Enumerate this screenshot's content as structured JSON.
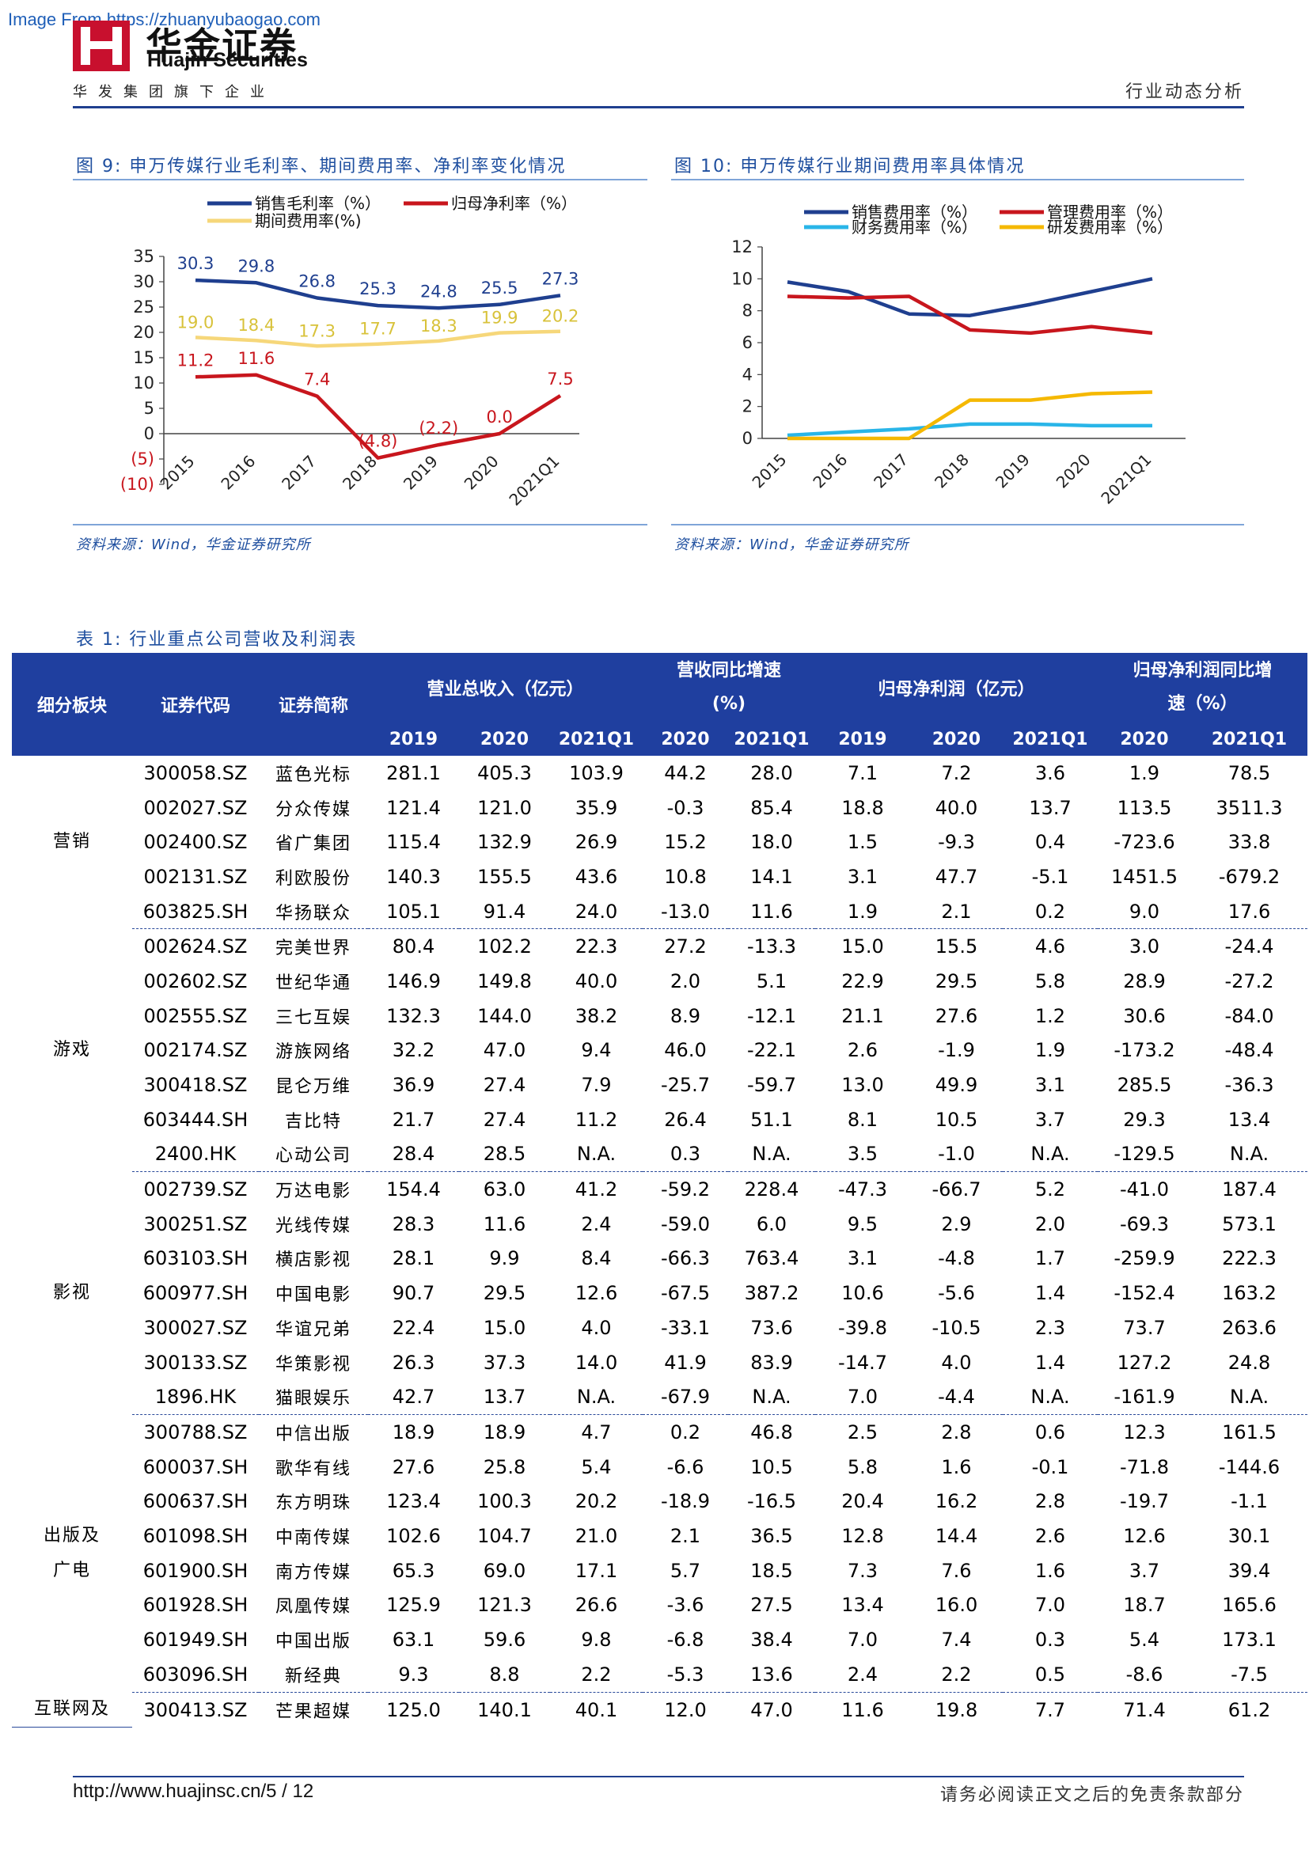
{
  "header": {
    "watermark": "Image From https://zhuanyubaogao.com",
    "logo_cn": "华金证券",
    "logo_en": "Huajin Securities",
    "subtitle": "华发集团旗下企业",
    "section": "行业动态分析",
    "brand_color": "#c8102e",
    "accent_color": "#1f3f9f"
  },
  "fig9": {
    "title": "图 9:  申万传媒行业毛利率、期间费用率、净利率变化情况",
    "source": "资料来源：Wind，华金证券研究所"
  },
  "fig10": {
    "title": "图 10:  申万传媒行业期间费用率具体情况",
    "source": "资料来源：Wind，华金证券研究所"
  },
  "chart_data": [
    {
      "type": "line",
      "categories": [
        "2015",
        "2016",
        "2017",
        "2018",
        "2019",
        "2020",
        "2021Q1"
      ],
      "ylim": [
        -10,
        35
      ],
      "yticks": [
        "35",
        "30",
        "25",
        "20",
        "15",
        "10",
        "5",
        "0",
        "(5)",
        "(10)"
      ],
      "legend": "top",
      "series": [
        {
          "name": "销售毛利率（%）",
          "color": "#1f3f8f",
          "values": [
            30.3,
            29.8,
            26.8,
            25.3,
            24.8,
            25.5,
            27.3
          ],
          "labels": [
            "30.3",
            "29.8",
            "26.8",
            "25.3",
            "24.8",
            "25.5",
            "27.3"
          ]
        },
        {
          "name": "归母净利率（%）",
          "color": "#c8161d",
          "values": [
            11.2,
            11.6,
            7.4,
            -4.8,
            -2.2,
            0.0,
            7.5
          ],
          "labels": [
            "11.2",
            "11.6",
            "7.4",
            "(4.8)",
            "(2.2)",
            "0.0",
            "7.5"
          ]
        },
        {
          "name": "期间费用率(%)",
          "color": "#f6d77a",
          "values": [
            19.0,
            18.4,
            17.3,
            17.7,
            18.3,
            19.9,
            20.2
          ],
          "labels": [
            "19.0",
            "18.4",
            "17.3",
            "17.7",
            "18.3",
            "19.9",
            "20.2"
          ]
        }
      ]
    },
    {
      "type": "line",
      "categories": [
        "2015",
        "2016",
        "2017",
        "2018",
        "2019",
        "2020",
        "2021Q1"
      ],
      "ylim": [
        0,
        12
      ],
      "yticks": [
        "12",
        "10",
        "8",
        "6",
        "4",
        "2",
        "0"
      ],
      "legend": "top",
      "series": [
        {
          "name": "销售费用率（%）",
          "color": "#1f3f8f",
          "values": [
            9.8,
            9.2,
            7.8,
            7.7,
            8.4,
            9.2,
            10.0
          ]
        },
        {
          "name": "管理费用率（%）",
          "color": "#c8161d",
          "values": [
            8.9,
            8.8,
            8.9,
            6.8,
            6.6,
            7.0,
            6.6
          ]
        },
        {
          "name": "财务费用率（%）",
          "color": "#29b5e8",
          "values": [
            0.2,
            0.4,
            0.6,
            0.9,
            0.9,
            0.8,
            0.8
          ]
        },
        {
          "name": "研发费用率（%）",
          "color": "#f5b800",
          "values": [
            0.0,
            0.0,
            0.0,
            2.4,
            2.4,
            2.8,
            2.9
          ]
        }
      ]
    }
  ],
  "table": {
    "title": "表 1:  行业重点公司营收及利润表",
    "header_top": {
      "sector": "细分板块",
      "code": "证券代码",
      "name": "证券简称",
      "revenue": "营业总收入（亿元）",
      "rev_growth_l1": "营收同比增速",
      "rev_growth_l2": "(%)",
      "profit": "归母净利润（亿元）",
      "profit_growth_l1": "归母净利润同比增",
      "profit_growth_l2": "速（%）"
    },
    "header_sub": [
      "2019",
      "2020",
      "2021Q1",
      "2020",
      "2021Q1",
      "2019",
      "2020",
      "2021Q1",
      "2020",
      "2021Q1"
    ],
    "groups": [
      {
        "sector": [
          "营销"
        ],
        "rows": [
          [
            "300058.SZ",
            "蓝色光标",
            "281.1",
            "405.3",
            "103.9",
            "44.2",
            "28.0",
            "7.1",
            "7.2",
            "3.6",
            "1.9",
            "78.5"
          ],
          [
            "002027.SZ",
            "分众传媒",
            "121.4",
            "121.0",
            "35.9",
            "-0.3",
            "85.4",
            "18.8",
            "40.0",
            "13.7",
            "113.5",
            "3511.3"
          ],
          [
            "002400.SZ",
            "省广集团",
            "115.4",
            "132.9",
            "26.9",
            "15.2",
            "18.0",
            "1.5",
            "-9.3",
            "0.4",
            "-723.6",
            "33.8"
          ],
          [
            "002131.SZ",
            "利欧股份",
            "140.3",
            "155.5",
            "43.6",
            "10.8",
            "14.1",
            "3.1",
            "47.7",
            "-5.1",
            "1451.5",
            "-679.2"
          ],
          [
            "603825.SH",
            "华扬联众",
            "105.1",
            "91.4",
            "24.0",
            "-13.0",
            "11.6",
            "1.9",
            "2.1",
            "0.2",
            "9.0",
            "17.6"
          ]
        ]
      },
      {
        "sector": [
          "游戏"
        ],
        "rows": [
          [
            "002624.SZ",
            "完美世界",
            "80.4",
            "102.2",
            "22.3",
            "27.2",
            "-13.3",
            "15.0",
            "15.5",
            "4.6",
            "3.0",
            "-24.4"
          ],
          [
            "002602.SZ",
            "世纪华通",
            "146.9",
            "149.8",
            "40.0",
            "2.0",
            "5.1",
            "22.9",
            "29.5",
            "5.8",
            "28.9",
            "-27.2"
          ],
          [
            "002555.SZ",
            "三七互娱",
            "132.3",
            "144.0",
            "38.2",
            "8.9",
            "-12.1",
            "21.1",
            "27.6",
            "1.2",
            "30.6",
            "-84.0"
          ],
          [
            "002174.SZ",
            "游族网络",
            "32.2",
            "47.0",
            "9.4",
            "46.0",
            "-22.1",
            "2.6",
            "-1.9",
            "1.9",
            "-173.2",
            "-48.4"
          ],
          [
            "300418.SZ",
            "昆仑万维",
            "36.9",
            "27.4",
            "7.9",
            "-25.7",
            "-59.7",
            "13.0",
            "49.9",
            "3.1",
            "285.5",
            "-36.3"
          ],
          [
            "603444.SH",
            "吉比特",
            "21.7",
            "27.4",
            "11.2",
            "26.4",
            "51.1",
            "8.1",
            "10.5",
            "3.7",
            "29.3",
            "13.4"
          ],
          [
            "2400.HK",
            "心动公司",
            "28.4",
            "28.5",
            "N.A.",
            "0.3",
            "N.A.",
            "3.5",
            "-1.0",
            "N.A.",
            "-129.5",
            "N.A."
          ]
        ]
      },
      {
        "sector": [
          "影视"
        ],
        "rows": [
          [
            "002739.SZ",
            "万达电影",
            "154.4",
            "63.0",
            "41.2",
            "-59.2",
            "228.4",
            "-47.3",
            "-66.7",
            "5.2",
            "-41.0",
            "187.4"
          ],
          [
            "300251.SZ",
            "光线传媒",
            "28.3",
            "11.6",
            "2.4",
            "-59.0",
            "6.0",
            "9.5",
            "2.9",
            "2.0",
            "-69.3",
            "573.1"
          ],
          [
            "603103.SH",
            "横店影视",
            "28.1",
            "9.9",
            "8.4",
            "-66.3",
            "763.4",
            "3.1",
            "-4.8",
            "1.7",
            "-259.9",
            "222.3"
          ],
          [
            "600977.SH",
            "中国电影",
            "90.7",
            "29.5",
            "12.6",
            "-67.5",
            "387.2",
            "10.6",
            "-5.6",
            "1.4",
            "-152.4",
            "163.2"
          ],
          [
            "300027.SZ",
            "华谊兄弟",
            "22.4",
            "15.0",
            "4.0",
            "-33.1",
            "73.6",
            "-39.8",
            "-10.5",
            "2.3",
            "73.7",
            "263.6"
          ],
          [
            "300133.SZ",
            "华策影视",
            "26.3",
            "37.3",
            "14.0",
            "41.9",
            "83.9",
            "-14.7",
            "4.0",
            "1.4",
            "127.2",
            "24.8"
          ],
          [
            "1896.HK",
            "猫眼娱乐",
            "42.7",
            "13.7",
            "N.A.",
            "-67.9",
            "N.A.",
            "7.0",
            "-4.4",
            "N.A.",
            "-161.9",
            "N.A."
          ]
        ]
      },
      {
        "sector": [
          "出版及",
          "广电"
        ],
        "rows": [
          [
            "300788.SZ",
            "中信出版",
            "18.9",
            "18.9",
            "4.7",
            "0.2",
            "46.8",
            "2.5",
            "2.8",
            "0.6",
            "12.3",
            "161.5"
          ],
          [
            "600037.SH",
            "歌华有线",
            "27.6",
            "25.8",
            "5.4",
            "-6.6",
            "10.5",
            "5.8",
            "1.6",
            "-0.1",
            "-71.8",
            "-144.6"
          ],
          [
            "600637.SH",
            "东方明珠",
            "123.4",
            "100.3",
            "20.2",
            "-18.9",
            "-16.5",
            "20.4",
            "16.2",
            "2.8",
            "-19.7",
            "-1.1"
          ],
          [
            "601098.SH",
            "中南传媒",
            "102.6",
            "104.7",
            "21.0",
            "2.1",
            "36.5",
            "12.8",
            "14.4",
            "2.6",
            "12.6",
            "30.1"
          ],
          [
            "601900.SH",
            "南方传媒",
            "65.3",
            "69.0",
            "17.1",
            "5.7",
            "18.5",
            "7.3",
            "7.6",
            "1.6",
            "3.7",
            "39.4"
          ],
          [
            "601928.SH",
            "凤凰传媒",
            "125.9",
            "121.3",
            "26.6",
            "-3.6",
            "27.5",
            "13.4",
            "16.0",
            "7.0",
            "18.7",
            "165.6"
          ],
          [
            "601949.SH",
            "中国出版",
            "63.1",
            "59.6",
            "9.8",
            "-6.8",
            "38.4",
            "7.0",
            "7.4",
            "0.3",
            "5.4",
            "173.1"
          ],
          [
            "603096.SH",
            "新经典",
            "9.3",
            "8.8",
            "2.2",
            "-5.3",
            "13.6",
            "2.4",
            "2.2",
            "0.5",
            "-8.6",
            "-7.5"
          ]
        ]
      },
      {
        "sector": [
          "互联网及"
        ],
        "rows": [
          [
            "300413.SZ",
            "芒果超媒",
            "125.0",
            "140.1",
            "40.1",
            "12.0",
            "47.0",
            "11.6",
            "19.8",
            "7.7",
            "71.4",
            "61.2"
          ]
        ]
      }
    ]
  },
  "footer": {
    "url": "http://www.huajinsc.cn/",
    "page": "5 / 12",
    "disclaimer": "请务必阅读正文之后的免责条款部分"
  }
}
